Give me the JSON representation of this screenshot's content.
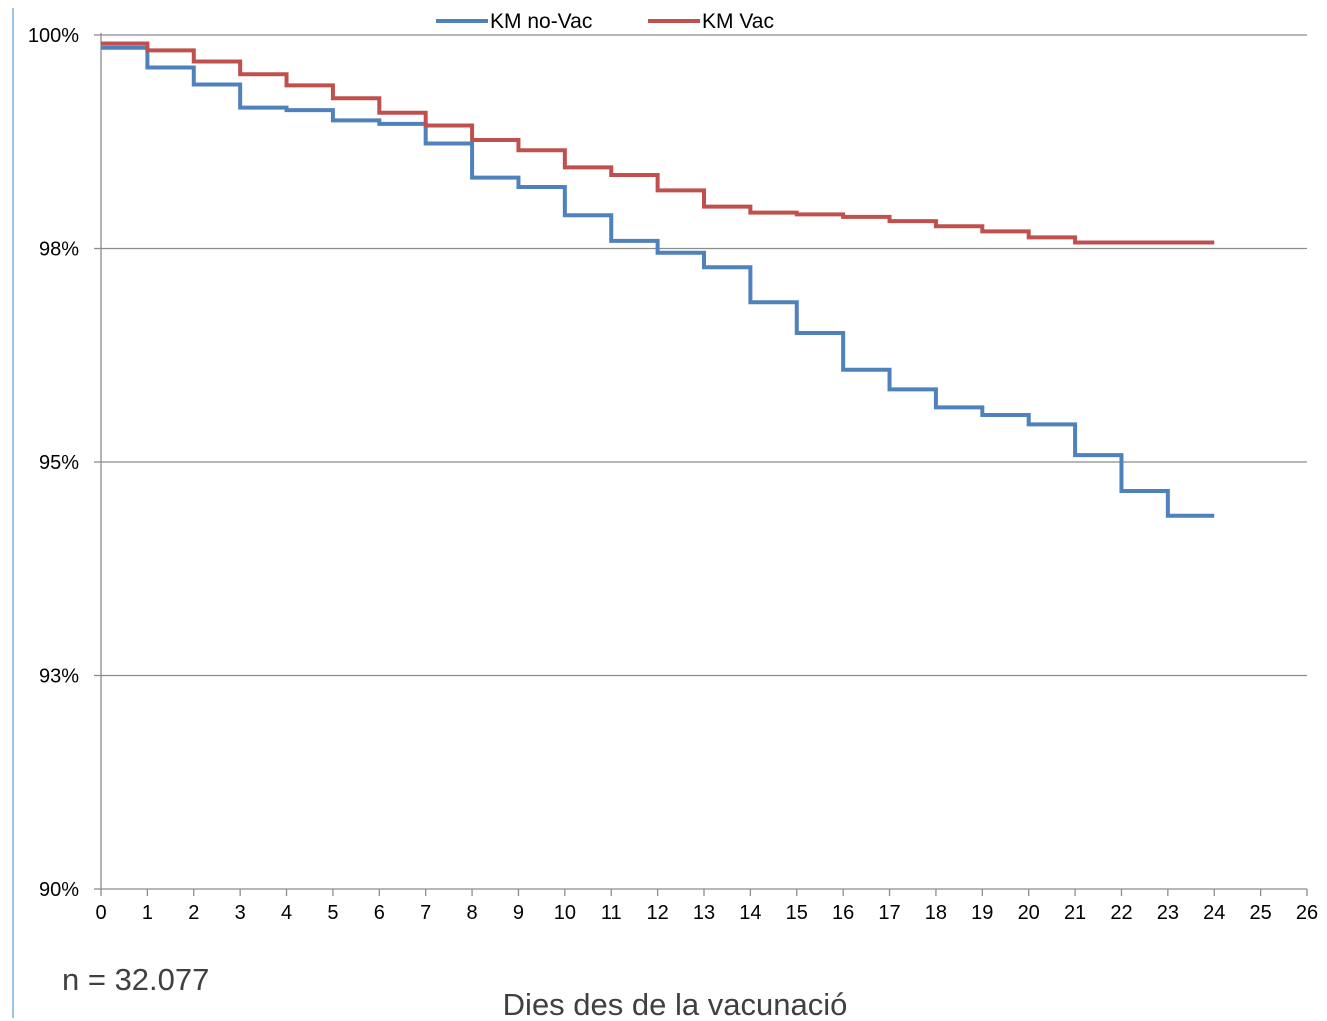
{
  "chart_data": {
    "type": "line",
    "step": true,
    "xlabel": "Dies des de la vacunació",
    "ylabel": "",
    "xlim": [
      0,
      26
    ],
    "ylim": [
      90,
      100
    ],
    "x_ticks": [
      "0",
      "1",
      "2",
      "3",
      "4",
      "5",
      "6",
      "7",
      "8",
      "9",
      "10",
      "11",
      "12",
      "13",
      "14",
      "15",
      "16",
      "17",
      "18",
      "19",
      "20",
      "21",
      "22",
      "23",
      "24",
      "25",
      "26"
    ],
    "y_ticks": [
      {
        "value": 90,
        "label": "90%"
      },
      {
        "value": 92.5,
        "label": "93%"
      },
      {
        "value": 95,
        "label": "95%"
      },
      {
        "value": 97.5,
        "label": "98%"
      },
      {
        "value": 100,
        "label": "100%"
      }
    ],
    "grid": "horizontal",
    "legend": "top-center",
    "annotation": "n = 32.077",
    "series": [
      {
        "name": "KM no-Vac",
        "color": "#4F81BD",
        "x": [
          0,
          1,
          2,
          3,
          4,
          5,
          6,
          7,
          8,
          9,
          10,
          11,
          12,
          13,
          14,
          15,
          16,
          17,
          18,
          19,
          20,
          21,
          22,
          23,
          24
        ],
        "y": [
          99.85,
          99.62,
          99.42,
          99.15,
          99.12,
          99.0,
          98.96,
          98.73,
          98.33,
          98.22,
          97.89,
          97.59,
          97.45,
          97.28,
          96.87,
          96.51,
          96.08,
          95.85,
          95.64,
          95.55,
          95.44,
          95.08,
          94.66,
          94.37,
          94.37
        ]
      },
      {
        "name": "KM Vac",
        "color": "#C0504D",
        "x": [
          0,
          1,
          2,
          3,
          4,
          5,
          6,
          7,
          8,
          9,
          10,
          11,
          12,
          13,
          14,
          15,
          16,
          17,
          18,
          19,
          20,
          21,
          22,
          23,
          24
        ],
        "y": [
          99.9,
          99.82,
          99.69,
          99.54,
          99.41,
          99.26,
          99.09,
          98.94,
          98.77,
          98.65,
          98.45,
          98.36,
          98.18,
          97.99,
          97.92,
          97.9,
          97.87,
          97.82,
          97.76,
          97.7,
          97.63,
          97.57,
          97.57,
          97.57,
          97.57
        ]
      }
    ]
  }
}
